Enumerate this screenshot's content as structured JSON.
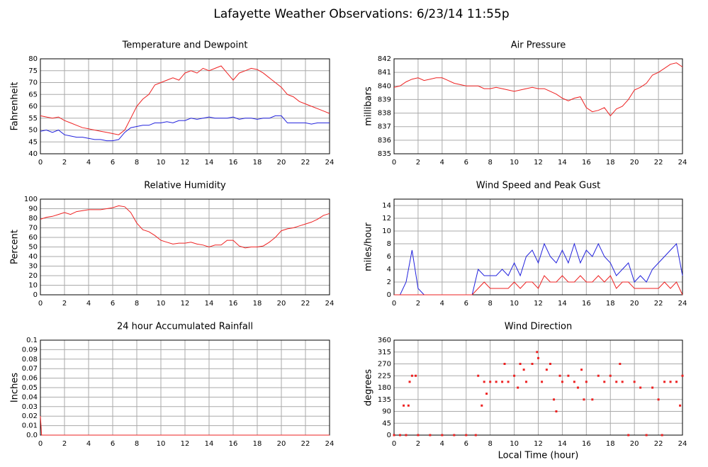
{
  "title": "Lafayette Weather Observations: 6/23/14 11:55p",
  "chart_data": [
    {
      "type": "line",
      "title": "Temperature and Dewpoint",
      "ylabel": "Fahrenheit",
      "x": [
        0,
        0.5,
        1,
        1.5,
        2,
        2.5,
        3,
        3.5,
        4,
        4.5,
        5,
        5.5,
        6,
        6.5,
        7,
        7.5,
        8,
        8.5,
        9,
        9.5,
        10,
        10.5,
        11,
        11.5,
        12,
        12.5,
        13,
        13.5,
        14,
        14.5,
        15,
        15.5,
        16,
        16.5,
        17,
        17.5,
        18,
        18.5,
        19,
        19.5,
        20,
        20.5,
        21,
        21.5,
        22,
        22.5,
        23,
        23.5,
        24
      ],
      "series": [
        {
          "color": "#ee2222",
          "values": [
            56,
            55.5,
            55,
            55.5,
            54,
            53,
            52,
            51,
            50.5,
            50,
            49.5,
            49,
            48.5,
            48,
            50,
            55,
            60,
            63,
            65,
            69,
            70,
            71,
            72,
            71,
            74,
            75,
            74,
            76,
            75,
            76,
            77,
            74,
            71,
            74,
            75,
            76,
            75.5,
            74,
            72,
            70,
            68,
            65,
            64,
            62,
            61,
            60,
            59,
            58,
            57
          ]
        },
        {
          "color": "#2222dd",
          "values": [
            49.5,
            50,
            49,
            50,
            48,
            47.5,
            47,
            47,
            46.5,
            46,
            46,
            45.5,
            45.5,
            46,
            49,
            51,
            51.5,
            52,
            52,
            53,
            53,
            53.5,
            53,
            54,
            54,
            55,
            54.5,
            55,
            55.5,
            55,
            55,
            55,
            55.5,
            54.5,
            55,
            55,
            54.5,
            55,
            55,
            56,
            56,
            53,
            53,
            53,
            53,
            52.5,
            53,
            53,
            53
          ]
        }
      ],
      "xlim": [
        0,
        24
      ],
      "xticks": [
        0,
        2,
        4,
        6,
        8,
        10,
        12,
        14,
        16,
        18,
        20,
        22,
        24
      ],
      "ylim": [
        40,
        80
      ],
      "yticks": [
        40,
        45,
        50,
        55,
        60,
        65,
        70,
        75,
        80
      ],
      "grid": true
    },
    {
      "type": "line",
      "title": "Air Pressure",
      "ylabel": "millibars",
      "x": [
        0,
        0.5,
        1,
        1.5,
        2,
        2.5,
        3,
        3.5,
        4,
        4.5,
        5,
        5.5,
        6,
        6.5,
        7,
        7.5,
        8,
        8.5,
        9,
        9.5,
        10,
        10.5,
        11,
        11.5,
        12,
        12.5,
        13,
        13.5,
        14,
        14.5,
        15,
        15.5,
        16,
        16.5,
        17,
        17.5,
        18,
        18.5,
        19,
        19.5,
        20,
        20.5,
        21,
        21.5,
        22,
        22.5,
        23,
        23.5,
        24
      ],
      "series": [
        {
          "color": "#ee2222",
          "values": [
            839.9,
            840,
            840.3,
            840.5,
            840.6,
            840.4,
            840.5,
            840.6,
            840.6,
            840.4,
            840.2,
            840.1,
            840,
            840,
            840,
            839.8,
            839.8,
            839.9,
            839.8,
            839.7,
            839.6,
            839.7,
            839.8,
            839.9,
            839.8,
            839.8,
            839.6,
            839.4,
            839.1,
            838.9,
            839.1,
            839.2,
            838.4,
            838.1,
            838.2,
            838.4,
            837.8,
            838.3,
            838.5,
            839,
            839.7,
            839.9,
            840.2,
            840.8,
            841,
            841.3,
            841.6,
            841.7,
            841.4
          ]
        }
      ],
      "xlim": [
        0,
        24
      ],
      "xticks": [
        0,
        2,
        4,
        6,
        8,
        10,
        12,
        14,
        16,
        18,
        20,
        22,
        24
      ],
      "ylim": [
        835,
        842
      ],
      "yticks": [
        835,
        836,
        837,
        838,
        839,
        840,
        841,
        842
      ],
      "grid": true
    },
    {
      "type": "line",
      "title": "Relative Humidity",
      "ylabel": "Percent",
      "x": [
        0,
        0.5,
        1,
        1.5,
        2,
        2.5,
        3,
        3.5,
        4,
        4.5,
        5,
        5.5,
        6,
        6.5,
        7,
        7.5,
        8,
        8.5,
        9,
        9.5,
        10,
        10.5,
        11,
        11.5,
        12,
        12.5,
        13,
        13.5,
        14,
        14.5,
        15,
        15.5,
        16,
        16.5,
        17,
        17.5,
        18,
        18.5,
        19,
        19.5,
        20,
        20.5,
        21,
        21.5,
        22,
        22.5,
        23,
        23.5,
        24
      ],
      "series": [
        {
          "color": "#ee2222",
          "values": [
            79,
            81,
            82,
            84,
            86,
            84,
            87,
            88,
            89,
            89,
            89,
            90,
            91,
            93,
            92,
            86,
            75,
            68,
            66,
            62,
            57,
            55,
            53,
            54,
            54,
            55,
            53,
            52,
            50,
            52,
            52,
            57,
            57,
            51,
            49,
            50,
            50,
            51,
            55,
            60,
            67,
            69,
            70,
            72,
            74,
            76,
            79,
            83,
            85
          ]
        }
      ],
      "xlim": [
        0,
        24
      ],
      "xticks": [
        0,
        2,
        4,
        6,
        8,
        10,
        12,
        14,
        16,
        18,
        20,
        22,
        24
      ],
      "ylim": [
        0,
        100
      ],
      "yticks": [
        0,
        10,
        20,
        30,
        40,
        50,
        60,
        70,
        80,
        90,
        100
      ],
      "grid": true
    },
    {
      "type": "line",
      "title": "Wind Speed and Peak Gust",
      "ylabel": "miles/hour",
      "x": [
        0,
        0.5,
        1,
        1.5,
        2,
        2.5,
        3,
        3.5,
        4,
        4.5,
        5,
        5.5,
        6,
        6.5,
        7,
        7.5,
        8,
        8.5,
        9,
        9.5,
        10,
        10.5,
        11,
        11.5,
        12,
        12.5,
        13,
        13.5,
        14,
        14.5,
        15,
        15.5,
        16,
        16.5,
        17,
        17.5,
        18,
        18.5,
        19,
        19.5,
        20,
        20.5,
        21,
        21.5,
        22,
        22.5,
        23,
        23.5,
        24
      ],
      "series": [
        {
          "color": "#2222dd",
          "values": [
            0,
            0,
            2,
            7,
            1,
            0,
            0,
            0,
            0,
            0,
            0,
            0,
            0,
            0,
            4,
            3,
            3,
            3,
            4,
            3,
            5,
            3,
            6,
            7,
            5,
            8,
            6,
            5,
            7,
            5,
            8,
            5,
            7,
            6,
            8,
            6,
            5,
            3,
            4,
            5,
            2,
            3,
            2,
            4,
            5,
            6,
            7,
            8,
            3
          ]
        },
        {
          "color": "#ee2222",
          "values": [
            0,
            0,
            0,
            0,
            0,
            0,
            0,
            0,
            0,
            0,
            0,
            0,
            0,
            0,
            1,
            2,
            1,
            1,
            1,
            1,
            2,
            1,
            2,
            2,
            1,
            3,
            2,
            2,
            3,
            2,
            2,
            3,
            2,
            2,
            3,
            2,
            3,
            1,
            2,
            2,
            1,
            1,
            1,
            1,
            1,
            2,
            1,
            2,
            0
          ]
        }
      ],
      "xlim": [
        0,
        24
      ],
      "xticks": [
        0,
        2,
        4,
        6,
        8,
        10,
        12,
        14,
        16,
        18,
        20,
        22,
        24
      ],
      "ylim": [
        0,
        15
      ],
      "yticks": [
        0,
        2,
        4,
        6,
        8,
        10,
        12,
        14
      ],
      "grid": true
    },
    {
      "type": "line",
      "title": "24 hour Accumulated Rainfall",
      "ylabel": "Inches",
      "x": [
        0,
        0.1,
        24
      ],
      "series": [
        {
          "color": "#ee2222",
          "values": [
            0.02,
            0,
            0
          ]
        }
      ],
      "xlim": [
        0,
        24
      ],
      "xticks": [
        0,
        2,
        4,
        6,
        8,
        10,
        12,
        14,
        16,
        18,
        20,
        22,
        24
      ],
      "ylim": [
        0,
        0.1
      ],
      "yticks": [
        {
          "value": 0,
          "label": "0.0"
        },
        0.01,
        0.02,
        0.03,
        0.04,
        0.05,
        0.06,
        0.07,
        0.08,
        0.09,
        0.1
      ],
      "grid": true
    },
    {
      "type": "scatter",
      "title": "Wind Direction",
      "ylabel": "degrees",
      "xlabel": "Local Time (hour)",
      "x": [
        0,
        0.5,
        0.8,
        1,
        1.2,
        1.3,
        1.5,
        1.8,
        2,
        3,
        4,
        5,
        6,
        6.8,
        7,
        7.3,
        7.5,
        7.7,
        8,
        8.5,
        9,
        9.2,
        9.5,
        10,
        10.3,
        10.5,
        10.8,
        11,
        11.5,
        11.9,
        12,
        12.3,
        12.7,
        13,
        13.3,
        13.5,
        13.8,
        14,
        14.5,
        15,
        15.3,
        15.6,
        15.8,
        16,
        16.5,
        17,
        17.5,
        18,
        18.5,
        18.8,
        19,
        19.5,
        20,
        20.5,
        21,
        21.5,
        22,
        22.3,
        22.5,
        23,
        23.5,
        23.8,
        24
      ],
      "series": [
        {
          "color": "#ee2222",
          "values": [
            0,
            0,
            112,
            0,
            112,
            202,
            225,
            225,
            0,
            0,
            0,
            0,
            0,
            0,
            225,
            112,
            202,
            157,
            202,
            202,
            202,
            270,
            202,
            225,
            180,
            270,
            248,
            202,
            270,
            315,
            292,
            202,
            248,
            270,
            135,
            90,
            225,
            202,
            225,
            202,
            180,
            248,
            135,
            202,
            135,
            225,
            202,
            225,
            202,
            270,
            202,
            0,
            202,
            180,
            0,
            180,
            135,
            0,
            202,
            202,
            202,
            112,
            225
          ]
        }
      ],
      "xlim": [
        0,
        24
      ],
      "xticks": [
        0,
        2,
        4,
        6,
        8,
        10,
        12,
        14,
        16,
        18,
        20,
        22,
        24
      ],
      "ylim": [
        0,
        360
      ],
      "yticks": [
        0,
        45,
        90,
        135,
        180,
        225,
        270,
        315,
        360
      ],
      "grid": true
    }
  ]
}
